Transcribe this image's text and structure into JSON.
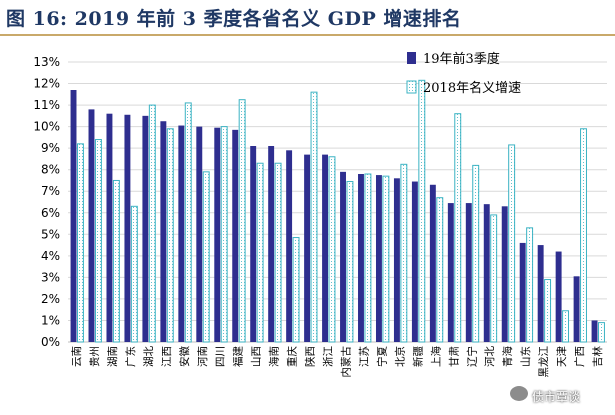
{
  "header": {
    "title": "图 16:  2019 年前 3 季度各省名义 GDP 增速排名"
  },
  "watermark": {
    "text": "债市覃谈"
  },
  "colors": {
    "series1": "#2e2e8f",
    "series2_border": "#3bb3c3",
    "series2_fill": "#ffffff",
    "grid": "#d9d9d9"
  },
  "chart_data": {
    "type": "bar",
    "title": "",
    "xlabel": "",
    "ylabel": "",
    "ylim": [
      0,
      13
    ],
    "yticks": [
      "0%",
      "1%",
      "2%",
      "3%",
      "4%",
      "5%",
      "6%",
      "7%",
      "8%",
      "9%",
      "10%",
      "11%",
      "12%",
      "13%"
    ],
    "grid": true,
    "legend_position": "top-right",
    "categories": [
      "云南",
      "贵州",
      "湖南",
      "广东",
      "湖北",
      "江西",
      "安徽",
      "河南",
      "四川",
      "福建",
      "山西",
      "海南",
      "重庆",
      "陕西",
      "浙江",
      "内蒙古",
      "江苏",
      "宁夏",
      "北京",
      "新疆",
      "上海",
      "甘肃",
      "辽宁",
      "河北",
      "青海",
      "山东",
      "黑龙江",
      "天津",
      "广西",
      "吉林"
    ],
    "series": [
      {
        "name": "19年前3季度",
        "values": [
          11.7,
          10.8,
          10.6,
          10.55,
          10.5,
          10.25,
          10.05,
          10.0,
          9.95,
          9.85,
          9.1,
          9.1,
          8.9,
          8.7,
          8.7,
          7.9,
          7.8,
          7.75,
          7.6,
          7.45,
          7.3,
          6.45,
          6.45,
          6.4,
          6.3,
          4.6,
          4.5,
          4.2,
          3.05,
          1.0
        ]
      },
      {
        "name": "2018年名义增速",
        "values": [
          9.2,
          9.4,
          7.5,
          6.3,
          11.0,
          9.9,
          11.1,
          7.9,
          10.0,
          11.25,
          8.3,
          8.3,
          4.85,
          11.6,
          8.6,
          7.45,
          7.8,
          7.7,
          8.25,
          12.15,
          6.7,
          10.6,
          8.2,
          5.9,
          9.15,
          5.3,
          2.9,
          1.45,
          9.9,
          0.9
        ]
      }
    ]
  }
}
